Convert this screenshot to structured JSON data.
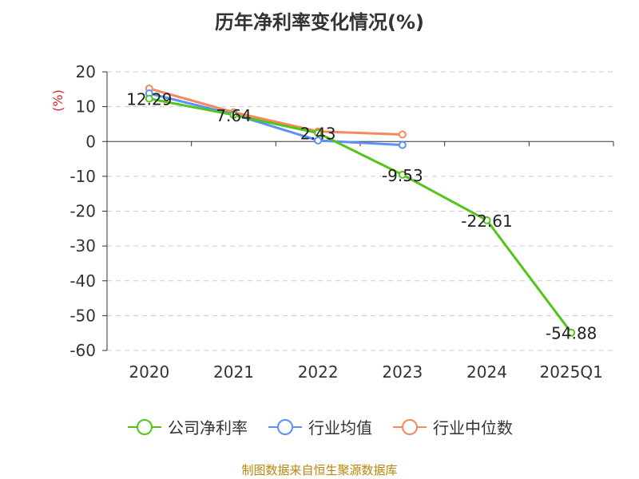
{
  "title": "历年净利率变化情况(%)",
  "ylabel": "(%)",
  "footer": "制图数据来自恒生聚源数据库",
  "chart_data": {
    "type": "line",
    "title": "历年净利率变化情况(%)",
    "ylabel": "(%)",
    "categories": [
      "2020",
      "2021",
      "2022",
      "2023",
      "2024",
      "2025Q1"
    ],
    "ylim": [
      -60,
      20
    ],
    "yticks": [
      20,
      10,
      0,
      -10,
      -20,
      -30,
      -40,
      -50,
      -60
    ],
    "grid": true,
    "legend_position": "bottom",
    "series": [
      {
        "name": "公司净利率",
        "color": "#52c41a",
        "values": [
          12.29,
          7.64,
          2.43,
          -9.53,
          -22.61,
          -54.88
        ],
        "labels": [
          "12.29",
          "7.64",
          "2.43",
          "-9.53",
          "-22.61",
          "-54.88"
        ]
      },
      {
        "name": "行业均值",
        "color": "#5b8ff9",
        "values": [
          13.8,
          7.8,
          0.3,
          -1.0,
          null,
          null
        ]
      },
      {
        "name": "行业中位数",
        "color": "#f4895f",
        "values": [
          15.2,
          8.4,
          2.9,
          2.0,
          null,
          null
        ]
      }
    ]
  }
}
